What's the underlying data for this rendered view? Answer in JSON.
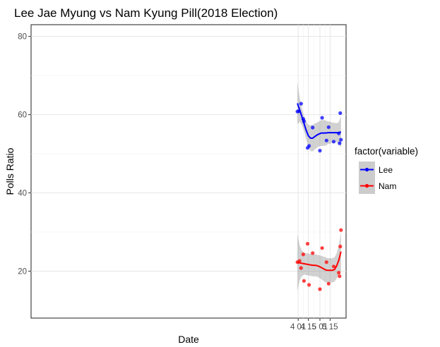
{
  "chart_data": {
    "type": "scatter",
    "title": "Lee Jae Myung vs Nam Kyung Pill(2018 Election)",
    "xlabel": "Date",
    "ylabel": "Polls Ratio",
    "x_ticks": [
      {
        "date": "2018-04-01",
        "label": "4 01"
      },
      {
        "date": "2018-04-15",
        "label": "4 15"
      },
      {
        "date": "2018-05-01",
        "label": "5 01"
      },
      {
        "date": "2018-05-15",
        "label": "5 15"
      }
    ],
    "xlim": [
      "2017-03-29",
      "2018-06-06"
    ],
    "ylim": [
      8,
      83
    ],
    "y_ticks": [
      20,
      40,
      60,
      80
    ],
    "grid": true,
    "legend": {
      "title": "factor(variable)",
      "position": "right"
    },
    "series": [
      {
        "name": "Lee",
        "color": "#0000ff",
        "points": [
          {
            "x": "2018-03-31",
            "y": 60.8
          },
          {
            "x": "2018-04-02",
            "y": 60.9
          },
          {
            "x": "2018-04-05",
            "y": 62.8
          },
          {
            "x": "2018-04-08",
            "y": 58.9
          },
          {
            "x": "2018-04-09",
            "y": 58.3
          },
          {
            "x": "2018-04-14",
            "y": 51.5
          },
          {
            "x": "2018-04-16",
            "y": 52.0
          },
          {
            "x": "2018-04-21",
            "y": 56.7
          },
          {
            "x": "2018-05-01",
            "y": 50.8
          },
          {
            "x": "2018-05-04",
            "y": 59.2
          },
          {
            "x": "2018-05-10",
            "y": 53.4
          },
          {
            "x": "2018-05-13",
            "y": 56.8
          },
          {
            "x": "2018-05-20",
            "y": 53.1
          },
          {
            "x": "2018-05-27",
            "y": 55.2
          },
          {
            "x": "2018-05-28",
            "y": 52.7
          },
          {
            "x": "2018-05-29",
            "y": 60.4
          },
          {
            "x": "2018-05-30",
            "y": 53.6
          }
        ],
        "smooth": {
          "x": [
            "2018-03-31",
            "2018-04-03",
            "2018-04-06",
            "2018-04-09",
            "2018-04-12",
            "2018-04-15",
            "2018-04-18",
            "2018-04-21",
            "2018-04-24",
            "2018-04-27",
            "2018-04-30",
            "2018-05-03",
            "2018-05-06",
            "2018-05-09",
            "2018-05-12",
            "2018-05-15",
            "2018-05-18",
            "2018-05-21",
            "2018-05-24",
            "2018-05-27",
            "2018-05-30"
          ],
          "y": [
            62.9,
            61.3,
            59.6,
            57.8,
            56.0,
            54.6,
            54.0,
            54.0,
            54.4,
            54.8,
            55.1,
            55.3,
            55.3,
            55.3,
            55.4,
            55.4,
            55.4,
            55.4,
            55.4,
            55.4,
            55.6
          ],
          "upper": [
            68.3,
            64.4,
            61.8,
            59.7,
            58.3,
            57.4,
            57.3,
            57.4,
            57.7,
            58.0,
            58.3,
            58.6,
            58.6,
            58.5,
            58.3,
            58.2,
            58.0,
            57.9,
            57.8,
            58.1,
            59.6
          ],
          "lower": [
            57.5,
            58.2,
            57.4,
            55.9,
            53.7,
            51.8,
            50.7,
            50.6,
            51.1,
            51.6,
            51.9,
            52.0,
            52.0,
            52.1,
            52.5,
            52.6,
            52.8,
            52.9,
            53.0,
            52.7,
            51.6
          ]
        }
      },
      {
        "name": "Nam",
        "color": "#ff0000",
        "points": [
          {
            "x": "2018-03-31",
            "y": 22.3
          },
          {
            "x": "2018-04-03",
            "y": 22.6
          },
          {
            "x": "2018-04-05",
            "y": 20.8
          },
          {
            "x": "2018-04-08",
            "y": 24.3
          },
          {
            "x": "2018-04-09",
            "y": 17.5
          },
          {
            "x": "2018-04-14",
            "y": 27.0
          },
          {
            "x": "2018-04-16",
            "y": 16.5
          },
          {
            "x": "2018-04-21",
            "y": 24.6
          },
          {
            "x": "2018-05-01",
            "y": 15.4
          },
          {
            "x": "2018-05-04",
            "y": 25.9
          },
          {
            "x": "2018-05-10",
            "y": 22.3
          },
          {
            "x": "2018-05-13",
            "y": 16.8
          },
          {
            "x": "2018-05-20",
            "y": 21.2
          },
          {
            "x": "2018-05-27",
            "y": 19.6
          },
          {
            "x": "2018-05-28",
            "y": 18.7
          },
          {
            "x": "2018-05-29",
            "y": 26.3
          },
          {
            "x": "2018-05-30",
            "y": 30.5
          }
        ],
        "smooth": {
          "x": [
            "2018-03-31",
            "2018-04-03",
            "2018-04-06",
            "2018-04-09",
            "2018-04-12",
            "2018-04-15",
            "2018-04-18",
            "2018-04-21",
            "2018-04-24",
            "2018-04-27",
            "2018-04-30",
            "2018-05-03",
            "2018-05-06",
            "2018-05-09",
            "2018-05-12",
            "2018-05-15",
            "2018-05-18",
            "2018-05-21",
            "2018-05-24",
            "2018-05-27",
            "2018-05-30"
          ],
          "y": [
            22.2,
            22.1,
            22.0,
            21.9,
            21.8,
            21.7,
            21.6,
            21.5,
            21.5,
            21.4,
            21.2,
            20.9,
            20.6,
            20.3,
            20.2,
            20.2,
            20.2,
            20.4,
            21.3,
            22.8,
            25.0
          ],
          "upper": [
            29.5,
            26.6,
            25.3,
            24.7,
            24.6,
            24.5,
            24.4,
            24.3,
            24.3,
            24.2,
            24.1,
            23.9,
            23.7,
            23.5,
            23.3,
            23.3,
            23.3,
            23.5,
            24.5,
            26.5,
            30.0
          ],
          "lower": [
            14.9,
            17.6,
            18.7,
            19.1,
            19.0,
            18.9,
            18.8,
            18.7,
            18.7,
            18.6,
            18.3,
            17.9,
            17.5,
            17.1,
            17.1,
            17.1,
            17.1,
            17.3,
            18.1,
            19.1,
            20.0
          ]
        }
      }
    ]
  }
}
